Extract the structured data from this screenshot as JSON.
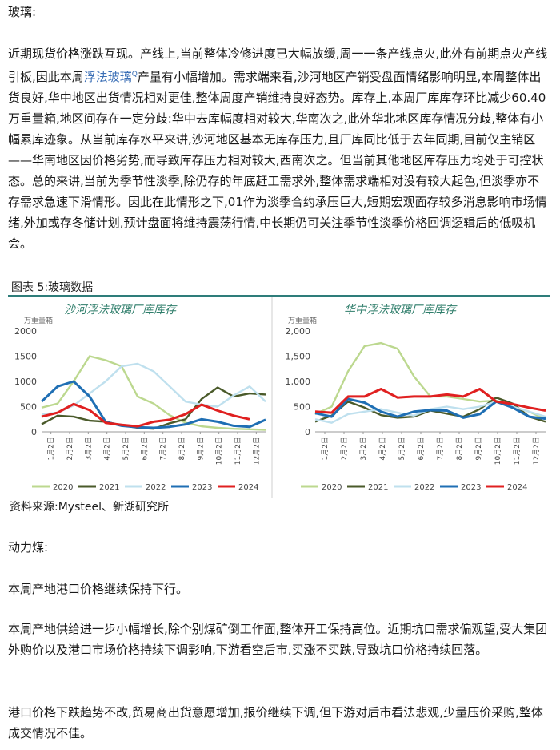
{
  "section1": {
    "heading": "玻璃:",
    "para_before_link": "近期现货价格涨跌互现。产线上,当前整体冷修进度已大幅放缓,周一一条产线点火,此外有前期点火产线引板,因此本周",
    "link_text": "浮法玻璃",
    "link_sup": "Q",
    "para_after_link": "产量有小幅增加。需求端来看,沙河地区产销受盘面情绪影响明显,本周整体出货良好,华中地区出货情况相对更佳,整体周度产销维持良好态势。库存上,本周厂库库存环比减少60.40万重量箱,地区间存在一定分歧:华中去库幅度相对较大,华南次之,此外华北地区库存情况分歧,整体有小幅累库迹象。从当前库存水平来讲,沙河地区基本无库存压力,且厂库同比低于去年同期,目前仅主销区——华南地区因价格劣势,而导致库存压力相对较大,西南次之。但当前其他地区库存压力均处于可控状态。总的来讲,当前为季节性淡季,除仍存的年底赶工需求外,整体需求端相对没有较大起色,但淡季亦不存需求急速下滑情形。因此在此情形之下,01作为淡季合约承压巨大,短期宏观面存较多消息影响市场情绪,外加或存冬储计划,预计盘面将维持震荡行情,中长期仍可关注季节性淡季价格回调逻辑后的低吸机会。"
  },
  "figure": {
    "caption": "图表 5:玻璃数据",
    "source": "资料来源:Mysteel、新湖研究所"
  },
  "legend": [
    {
      "label": "2020",
      "color": "#bcd88f"
    },
    {
      "label": "2021",
      "color": "#4a5a2a"
    },
    {
      "label": "2022",
      "color": "#bfe0ee"
    },
    {
      "label": "2023",
      "color": "#1f6fb4"
    },
    {
      "label": "2024",
      "color": "#e02020"
    }
  ],
  "chart_data": [
    {
      "type": "line",
      "title": "沙河浮法玻璃厂库库存",
      "ylabel": "万重量箱",
      "ylim": [
        0,
        2000
      ],
      "yticks": [
        "0",
        "500",
        "1000",
        "1500",
        "2000"
      ],
      "xticks": [
        "1月2日",
        "2月2日",
        "3月2日",
        "4月2日",
        "5月2日",
        "6月2日",
        "7月2日",
        "8月2日",
        "9月2日",
        "10月2日",
        "11月2日",
        "12月2日"
      ],
      "series": [
        {
          "name": "2020",
          "values": [
            480,
            560,
            1000,
            1500,
            1420,
            1300,
            700,
            560,
            330,
            180,
            110,
            80,
            60,
            50,
            40
          ]
        },
        {
          "name": "2021",
          "values": [
            150,
            320,
            300,
            220,
            200,
            130,
            80,
            60,
            170,
            250,
            650,
            880,
            700,
            760,
            740
          ]
        },
        {
          "name": "2022",
          "values": [
            350,
            380,
            520,
            760,
            1000,
            1300,
            1350,
            1200,
            900,
            600,
            540,
            500,
            720,
            900,
            600
          ]
        },
        {
          "name": "2023",
          "values": [
            600,
            900,
            1000,
            700,
            200,
            120,
            90,
            80,
            100,
            150,
            250,
            200,
            120,
            100,
            240
          ]
        },
        {
          "name": "2024",
          "values": [
            300,
            380,
            550,
            430,
            180,
            140,
            110,
            200,
            240,
            350,
            540,
            420,
            320,
            250,
            null
          ]
        }
      ]
    },
    {
      "type": "line",
      "title": "华中浮法玻璃厂库库存",
      "ylabel": "万重量箱",
      "ylim": [
        0,
        2000
      ],
      "yticks": [
        "0",
        "500",
        "1,000",
        "1,500",
        "2,000"
      ],
      "xticks": [
        "1月2日",
        "2月2日",
        "3月2日",
        "4月2日",
        "5月2日",
        "6月2日",
        "7月2日",
        "8月2日",
        "9月2日",
        "10月2日",
        "11月2日",
        "12月2日"
      ],
      "series": [
        {
          "name": "2020",
          "values": [
            350,
            500,
            1200,
            1700,
            1760,
            1650,
            1100,
            700,
            700,
            650,
            600,
            620,
            500,
            400,
            250
          ]
        },
        {
          "name": "2021",
          "values": [
            200,
            320,
            600,
            480,
            330,
            280,
            300,
            420,
            360,
            300,
            450,
            680,
            560,
            300,
            200
          ]
        },
        {
          "name": "2022",
          "values": [
            250,
            180,
            350,
            400,
            450,
            380,
            320,
            450,
            500,
            450,
            500,
            600,
            500,
            400,
            300
          ]
        },
        {
          "name": "2023",
          "values": [
            370,
            300,
            650,
            580,
            400,
            300,
            400,
            430,
            420,
            280,
            350,
            600,
            480,
            300,
            260
          ]
        },
        {
          "name": "2024",
          "values": [
            400,
            380,
            700,
            700,
            850,
            680,
            700,
            700,
            740,
            700,
            850,
            600,
            550,
            480,
            420
          ]
        }
      ]
    }
  ],
  "section2": {
    "heading": "动力煤:",
    "p1": "本周产地港口价格继续保持下行。",
    "p2": "本周产地供给进一步小幅增长,除个别煤矿倒工作面,整体开工保持高位。近期坑口需求偏观望,受大集团外购价以及港口市场价格持续下调影响,下游看空后市,买涨不买跌,导致坑口价格持续回落。",
    "p3": "港口价格下跌趋势不改,贸易商出货意愿增加,报价继续下调,但下游对后市看法悲观,少量压价采购,整体成交情况不佳。"
  }
}
